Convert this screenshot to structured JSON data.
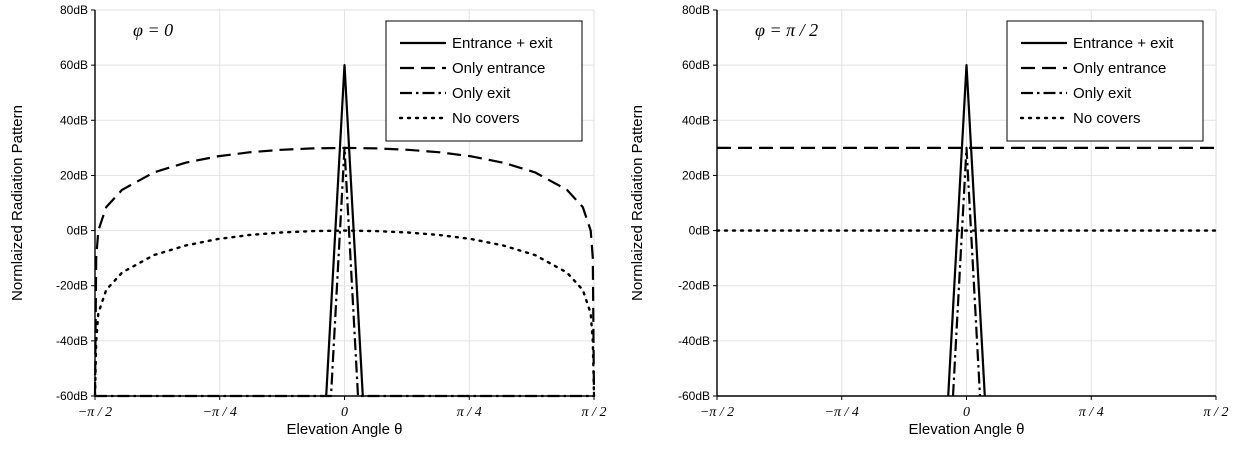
{
  "chart_data": [
    {
      "type": "line",
      "annotation": "φ = 0",
      "xlabel": "Elevation Angle θ",
      "ylabel": "Normlaized Radiation Pattern",
      "x_unit": "rad",
      "xlim": [
        -1.5708,
        1.5708
      ],
      "ylim": [
        -60,
        80
      ],
      "x_ticks": [
        -1.5708,
        -0.7854,
        0,
        0.7854,
        1.5708
      ],
      "x_tick_labels": [
        "−π / 2",
        "−π / 4",
        "0",
        "π / 4",
        "π / 2"
      ],
      "y_ticks": [
        -60,
        -40,
        -20,
        0,
        20,
        40,
        60,
        80
      ],
      "y_tick_labels": [
        "-60dB",
        "-40dB",
        "-20dB",
        "0dB",
        "20dB",
        "40dB",
        "60dB",
        "80dB"
      ],
      "grid": true,
      "legend_position": "top-right",
      "series": [
        {
          "name": "Entrance + exit",
          "style": "solid",
          "x": [
            -0.115,
            0,
            0.115
          ],
          "y": [
            -60,
            60,
            -60
          ]
        },
        {
          "name": "Only entrance",
          "style": "dashed",
          "x": [
            -1.5708,
            -1.563,
            -1.55,
            -1.5,
            -1.4,
            -1.2,
            -1.0,
            -0.8,
            -0.6,
            -0.4,
            -0.2,
            0,
            0.2,
            0.4,
            0.6,
            0.8,
            1.0,
            1.2,
            1.4,
            1.5,
            1.55,
            1.563,
            1.5708
          ],
          "y": [
            -60,
            -10,
            0,
            8.5,
            14.8,
            21.1,
            24.6,
            26.9,
            28.4,
            29.3,
            29.8,
            30,
            29.8,
            29.3,
            28.4,
            26.9,
            24.6,
            21.1,
            14.8,
            8.5,
            0,
            -10,
            -60
          ]
        },
        {
          "name": "Only exit",
          "style": "dash-dot",
          "x": [
            -1.5708,
            -1.5705,
            -0.085,
            0,
            0.085,
            1.5705,
            1.5708
          ],
          "y": [
            -60,
            -60,
            -60,
            30,
            -60,
            -60,
            -60
          ]
        },
        {
          "name": "No covers",
          "style": "dotted",
          "x": [
            -1.5708,
            -1.563,
            -1.55,
            -1.5,
            -1.4,
            -1.2,
            -1.0,
            -0.8,
            -0.6,
            -0.4,
            -0.2,
            0,
            0.2,
            0.4,
            0.6,
            0.8,
            1.0,
            1.2,
            1.4,
            1.5,
            1.55,
            1.563,
            1.5708
          ],
          "y": [
            -60,
            -40,
            -30,
            -21.5,
            -15.2,
            -8.9,
            -5.4,
            -3.1,
            -1.6,
            -0.7,
            -0.2,
            0,
            -0.2,
            -0.7,
            -1.6,
            -3.1,
            -5.4,
            -8.9,
            -15.2,
            -21.5,
            -30,
            -40,
            -60
          ]
        }
      ]
    },
    {
      "type": "line",
      "annotation": "φ = π / 2",
      "xlabel": "Elevation Angle θ",
      "ylabel": "Normlaized Radiation Pattern",
      "x_unit": "rad",
      "xlim": [
        -1.5708,
        1.5708
      ],
      "ylim": [
        -60,
        80
      ],
      "x_ticks": [
        -1.5708,
        -0.7854,
        0,
        0.7854,
        1.5708
      ],
      "x_tick_labels": [
        "−π / 2",
        "−π / 4",
        "0",
        "π / 4",
        "π / 2"
      ],
      "y_ticks": [
        -60,
        -40,
        -20,
        0,
        20,
        40,
        60,
        80
      ],
      "y_tick_labels": [
        "-60dB",
        "-40dB",
        "-20dB",
        "0dB",
        "20dB",
        "40dB",
        "60dB",
        "80dB"
      ],
      "grid": true,
      "legend_position": "top-right",
      "series": [
        {
          "name": "Entrance + exit",
          "style": "solid",
          "x": [
            -0.115,
            0,
            0.115
          ],
          "y": [
            -60,
            60,
            -60
          ]
        },
        {
          "name": "Only entrance",
          "style": "dashed",
          "x": [
            -1.5708,
            1.5708
          ],
          "y": [
            30,
            30
          ]
        },
        {
          "name": "Only exit",
          "style": "dash-dot",
          "x": [
            -0.085,
            0,
            0.085
          ],
          "y": [
            -60,
            30,
            -60
          ]
        },
        {
          "name": "No covers",
          "style": "dotted",
          "x": [
            -1.5708,
            1.5708
          ],
          "y": [
            0,
            0
          ]
        }
      ]
    }
  ]
}
